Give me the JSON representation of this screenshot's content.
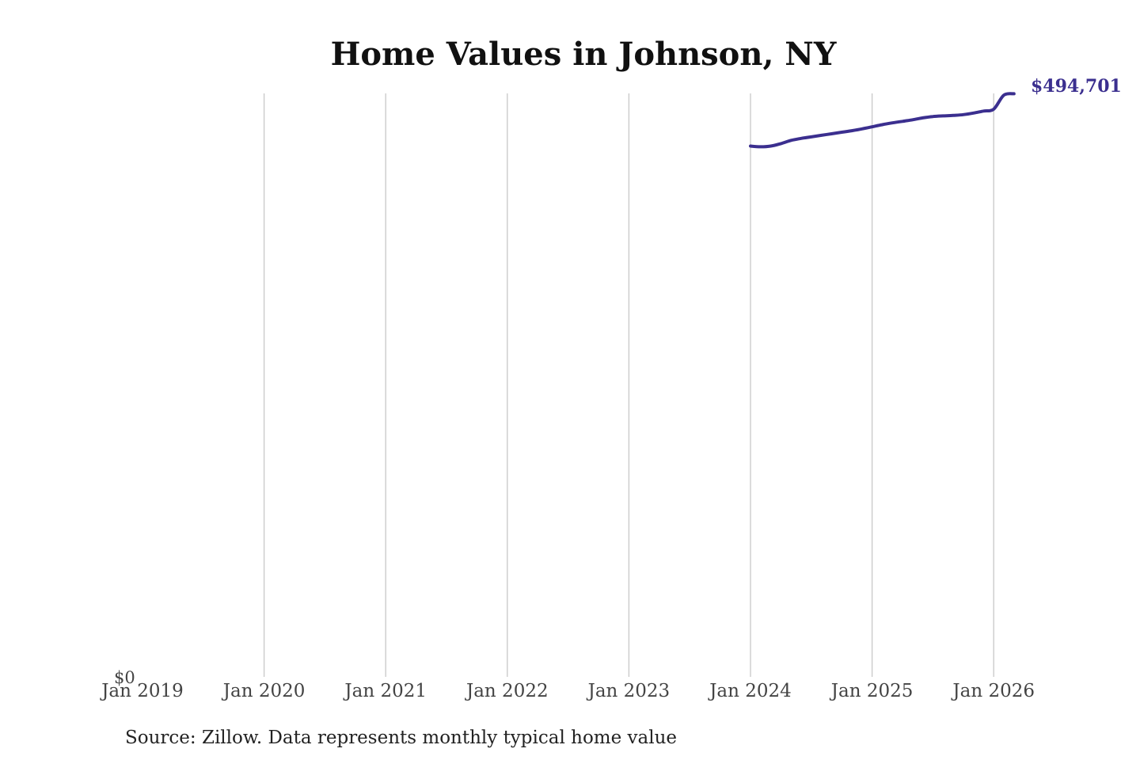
{
  "chart_data": {
    "type": "line",
    "title": "Home Values in Johnson, NY",
    "source": "Source: Zillow. Data represents monthly typical home value",
    "x_ticks": [
      "Jan 2019",
      "Jan 2020",
      "Jan 2021",
      "Jan 2022",
      "Jan 2023",
      "Jan 2024",
      "Jan 2025",
      "Jan 2026"
    ],
    "y_tick_label": "$0",
    "ylim": [
      0,
      500000
    ],
    "xlim": [
      "2019-01",
      "2026-03"
    ],
    "grid": "vertical",
    "line_color": "#3b2f8f",
    "end_label": "$494,701",
    "series": [
      {
        "x": [
          "2024-01",
          "2024-02",
          "2024-03",
          "2024-04",
          "2024-05",
          "2024-06",
          "2024-07",
          "2024-08",
          "2024-09",
          "2024-10",
          "2024-11",
          "2024-12",
          "2025-01",
          "2025-02",
          "2025-03",
          "2025-04",
          "2025-05",
          "2025-06",
          "2025-07",
          "2025-08",
          "2025-09",
          "2025-10",
          "2025-11",
          "2025-12",
          "2026-01",
          "2026-02",
          "2026-03"
        ],
        "values": [
          450500,
          449900,
          450500,
          452600,
          455300,
          457000,
          458300,
          459600,
          460900,
          462200,
          463500,
          465000,
          466800,
          468600,
          470100,
          471400,
          472700,
          474300,
          475500,
          476000,
          476400,
          477100,
          478400,
          480100,
          481700,
          493500,
          494701
        ]
      }
    ]
  }
}
